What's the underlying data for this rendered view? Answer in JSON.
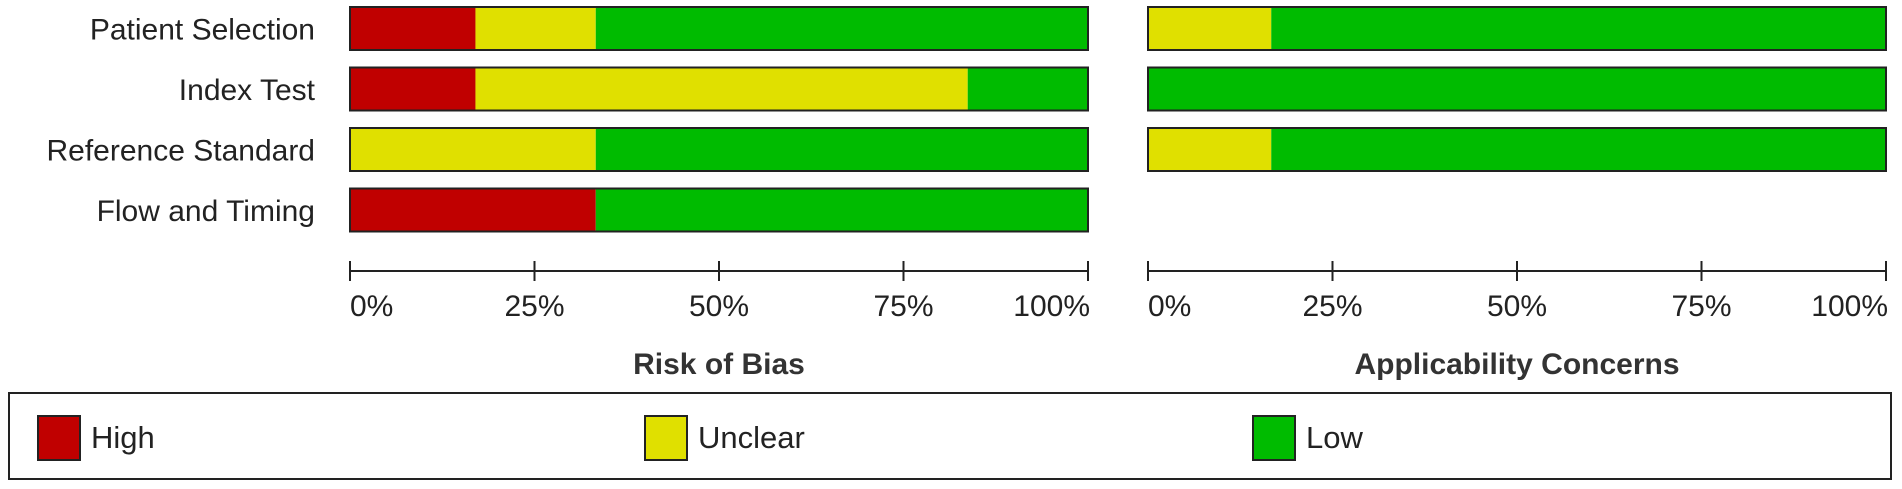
{
  "chart_data": {
    "type": "bar",
    "stacked": true,
    "orientation": "horizontal",
    "x_ticks": [
      "0%",
      "25%",
      "50%",
      "75%",
      "100%"
    ],
    "xlim": [
      0,
      100
    ],
    "legend": {
      "placement": "bottom",
      "items": [
        {
          "name": "High",
          "color": "#c00000"
        },
        {
          "name": "Unclear",
          "color": "#e0e000"
        },
        {
          "name": "Low",
          "color": "#00bb00"
        }
      ]
    },
    "panels": [
      {
        "title": "Risk of Bias",
        "categories": [
          "Patient Selection",
          "Index Test",
          "Reference Standard",
          "Flow and Timing"
        ],
        "series": [
          {
            "name": "High",
            "values": [
              17,
              17,
              0,
              33.3
            ]
          },
          {
            "name": "Unclear",
            "values": [
              16.3,
              66.7,
              33.3,
              0
            ]
          },
          {
            "name": "Low",
            "values": [
              66.7,
              16.3,
              66.7,
              66.7
            ]
          }
        ]
      },
      {
        "title": "Applicability Concerns",
        "categories": [
          "Patient Selection",
          "Index Test",
          "Reference Standard"
        ],
        "series": [
          {
            "name": "High",
            "values": [
              0,
              0,
              0
            ]
          },
          {
            "name": "Unclear",
            "values": [
              16.7,
              0,
              16.7
            ]
          },
          {
            "name": "Low",
            "values": [
              83.3,
              100,
              83.3
            ]
          }
        ]
      }
    ]
  }
}
